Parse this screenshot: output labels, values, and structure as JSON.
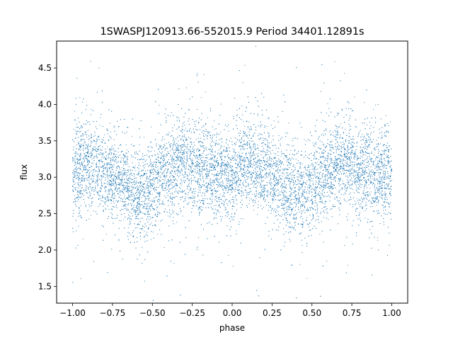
{
  "chart_data": {
    "type": "scatter",
    "title": "1SWASPJ120913.66-552015.9 Period 34401.12891s",
    "xlabel": "phase",
    "ylabel": "flux",
    "xlim": [
      -1.1,
      1.1
    ],
    "ylim": [
      1.27,
      4.87
    ],
    "x_ticks": [
      -1.0,
      -0.75,
      -0.5,
      -0.25,
      0.0,
      0.25,
      0.5,
      0.75,
      1.0
    ],
    "x_tick_labels": [
      "−1.00",
      "−0.75",
      "−0.50",
      "−0.25",
      "0.00",
      "0.25",
      "0.50",
      "0.75",
      "1.00"
    ],
    "y_ticks": [
      1.5,
      2.0,
      2.5,
      3.0,
      3.5,
      4.0,
      4.5
    ],
    "y_tick_labels": [
      "1.5",
      "2.0",
      "2.5",
      "3.0",
      "3.5",
      "4.0",
      "4.5"
    ],
    "grid": false,
    "legend": "none",
    "marker_color": "#1f77b4",
    "series": [
      {
        "x_range": [
          -1.0,
          1.0
        ],
        "approx_points": 12000,
        "mean_flux_profile": {
          "phase": [
            -1.0,
            -0.9,
            -0.8,
            -0.7,
            -0.6,
            -0.55,
            -0.5,
            -0.4,
            -0.3,
            -0.2,
            -0.1,
            0.0,
            0.1,
            0.2,
            0.3,
            0.4,
            0.45,
            0.5,
            0.6,
            0.7,
            0.8,
            0.9,
            1.0
          ],
          "flux": [
            3.05,
            3.2,
            3.1,
            2.95,
            2.8,
            2.75,
            2.9,
            3.1,
            3.2,
            3.1,
            3.0,
            3.05,
            3.2,
            3.1,
            2.95,
            2.8,
            2.75,
            2.9,
            3.1,
            3.2,
            3.1,
            3.0,
            3.05
          ]
        },
        "flux_scatter": 0.3
      }
    ]
  }
}
